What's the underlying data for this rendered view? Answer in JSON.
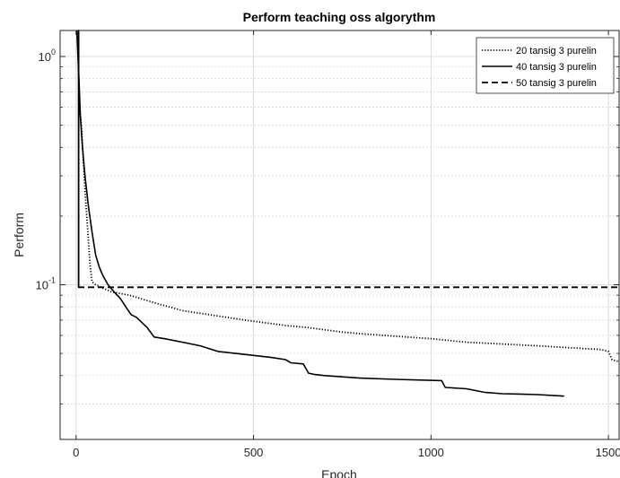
{
  "chart_data": {
    "type": "line",
    "title": "Perform teaching oss algorythm",
    "xlabel": "Epoch",
    "ylabel": "Perform",
    "xlim": [
      -45,
      1530
    ],
    "ylim": [
      0.021,
      1.3
    ],
    "yscale": "log",
    "grid": true,
    "legend_position": "top-right",
    "x_ticks": [
      0,
      500,
      1000,
      1500
    ],
    "x_tick_labels": [
      "0",
      "500",
      "1000",
      "1500"
    ],
    "y_major_ticks": [
      0.1,
      1
    ],
    "y_tick_labels": [
      {
        "base": "10",
        "exp": "-1"
      },
      {
        "base": "10",
        "exp": "0"
      }
    ],
    "series": [
      {
        "name": "20 tansig 3 purelin",
        "line_style": "dotted",
        "color": "#000000",
        "points": [
          [
            3,
            1.3
          ],
          [
            10,
            0.6
          ],
          [
            15,
            0.5
          ],
          [
            20,
            0.36
          ],
          [
            25,
            0.26
          ],
          [
            30,
            0.2
          ],
          [
            35,
            0.155
          ],
          [
            40,
            0.12
          ],
          [
            45,
            0.103
          ],
          [
            55,
            0.1
          ],
          [
            80,
            0.096
          ],
          [
            100,
            0.093
          ],
          [
            150,
            0.09
          ],
          [
            225,
            0.083
          ],
          [
            275,
            0.079
          ],
          [
            300,
            0.077
          ],
          [
            475,
            0.07
          ],
          [
            600,
            0.066
          ],
          [
            650,
            0.065
          ],
          [
            750,
            0.062
          ],
          [
            800,
            0.061
          ],
          [
            1000,
            0.058
          ],
          [
            1100,
            0.056
          ],
          [
            1300,
            0.054
          ],
          [
            1480,
            0.052
          ],
          [
            1500,
            0.051
          ],
          [
            1510,
            0.047
          ],
          [
            1530,
            0.046
          ]
        ]
      },
      {
        "name": "40 tansig 3 purelin",
        "line_style": "solid",
        "color": "#000000",
        "points": [
          [
            2,
            1.3
          ],
          [
            8,
            0.8
          ],
          [
            12,
            0.55
          ],
          [
            18,
            0.4
          ],
          [
            25,
            0.3
          ],
          [
            35,
            0.22
          ],
          [
            45,
            0.17
          ],
          [
            55,
            0.135
          ],
          [
            65,
            0.12
          ],
          [
            75,
            0.11
          ],
          [
            90,
            0.1
          ],
          [
            110,
            0.092
          ],
          [
            125,
            0.087
          ],
          [
            140,
            0.08
          ],
          [
            155,
            0.074
          ],
          [
            170,
            0.072
          ],
          [
            200,
            0.065
          ],
          [
            220,
            0.059
          ],
          [
            250,
            0.058
          ],
          [
            300,
            0.056
          ],
          [
            350,
            0.054
          ],
          [
            400,
            0.051
          ],
          [
            450,
            0.05
          ],
          [
            500,
            0.049
          ],
          [
            550,
            0.048
          ],
          [
            590,
            0.047
          ],
          [
            605,
            0.0455
          ],
          [
            640,
            0.045
          ],
          [
            655,
            0.041
          ],
          [
            670,
            0.0405
          ],
          [
            700,
            0.04
          ],
          [
            800,
            0.039
          ],
          [
            900,
            0.0385
          ],
          [
            1030,
            0.038
          ],
          [
            1040,
            0.0355
          ],
          [
            1100,
            0.035
          ],
          [
            1150,
            0.0338
          ],
          [
            1200,
            0.0333
          ],
          [
            1250,
            0.0332
          ],
          [
            1300,
            0.033
          ],
          [
            1375,
            0.0325
          ]
        ]
      },
      {
        "name": "50 tansig 3 purelin",
        "line_style": "dashed",
        "color": "#000000",
        "points": [
          [
            7,
            0.0975
          ],
          [
            7,
            1.3
          ],
          [
            7,
            0.0975
          ],
          [
            1530,
            0.0975
          ]
        ]
      }
    ]
  }
}
